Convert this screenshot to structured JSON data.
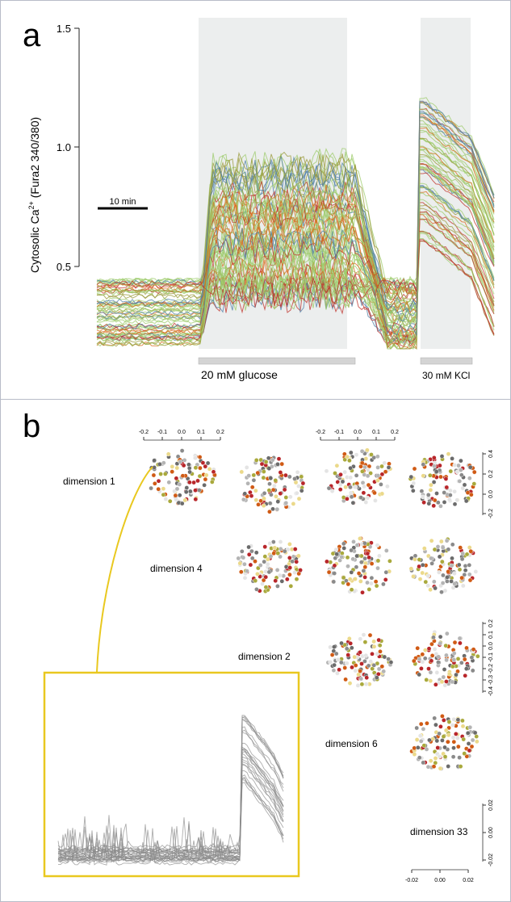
{
  "panel_a": {
    "letter": "a",
    "ylabel_main": "Cytosolic Ca",
    "ylabel_sup": "2+",
    "ylabel_rest": " (Fura2 340/380)",
    "y_ticks": [
      "1.5",
      "1.0",
      "0.5"
    ],
    "scale_bar_label": "10 min",
    "glucose_label": "20 mM glucose",
    "kcl_label": "30 mM KCl"
  },
  "panel_b": {
    "letter": "b",
    "dimension_labels": [
      "dimension 1",
      "dimension 4",
      "dimension 2",
      "dimension 6",
      "dimension 33"
    ],
    "top_axis_ticks": [
      "-0.2",
      "-0.1",
      "0.0",
      "0.1",
      "0.2"
    ],
    "right_axis_ticks_row1": [
      "0.4",
      "0.2",
      "0.0",
      "-0.2"
    ],
    "right_axis_ticks_row3": [
      "0.2",
      "0.1",
      "0.0",
      "-0.1",
      "-0.2",
      "-0.3",
      "-0.4"
    ],
    "small_axis_ticks": [
      "-0.02",
      "0.00",
      "0.02"
    ]
  },
  "colors": {
    "shade": "#eceeee",
    "bar": "#d4d4d4",
    "inset_border": "#e9c81f",
    "trace_gray": "#8a8a8a",
    "red": "#c0322a",
    "orange": "#d86a1a",
    "green": "#9ccb6a",
    "blue": "#4f7fa6",
    "olive": "#9a9a3a"
  }
}
